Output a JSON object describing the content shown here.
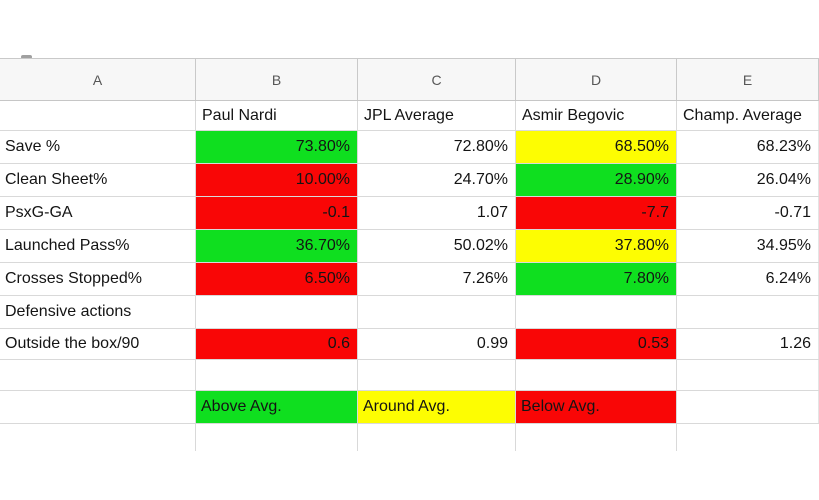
{
  "sheet": {
    "column_headers": [
      "A",
      "B",
      "C",
      "D",
      "E"
    ],
    "players_row": {
      "b": "Paul Nardi",
      "c": "JPL Average",
      "d": "Asmir Begovic",
      "e": "Champ. Average"
    },
    "stat_rows": [
      {
        "label": "Save %",
        "b": {
          "text": "73.80%",
          "bg": "green"
        },
        "c": {
          "text": "72.80%",
          "bg": "white"
        },
        "d": {
          "text": "68.50%",
          "bg": "yellow"
        },
        "e": {
          "text": "68.23%",
          "bg": "white"
        }
      },
      {
        "label": "Clean Sheet%",
        "b": {
          "text": "10.00%",
          "bg": "red"
        },
        "c": {
          "text": "24.70%",
          "bg": "white"
        },
        "d": {
          "text": "28.90%",
          "bg": "green"
        },
        "e": {
          "text": "26.04%",
          "bg": "white"
        }
      },
      {
        "label": "PsxG-GA",
        "b": {
          "text": "-0.1",
          "bg": "red"
        },
        "c": {
          "text": "1.07",
          "bg": "white"
        },
        "d": {
          "text": "-7.7",
          "bg": "red"
        },
        "e": {
          "text": "-0.71",
          "bg": "white"
        }
      },
      {
        "label": "Launched Pass%",
        "b": {
          "text": "36.70%",
          "bg": "green"
        },
        "c": {
          "text": "50.02%",
          "bg": "white"
        },
        "d": {
          "text": "37.80%",
          "bg": "yellow"
        },
        "e": {
          "text": "34.95%",
          "bg": "white"
        }
      },
      {
        "label": "Crosses Stopped%",
        "b": {
          "text": "6.50%",
          "bg": "red"
        },
        "c": {
          "text": "7.26%",
          "bg": "white"
        },
        "d": {
          "text": "7.80%",
          "bg": "green"
        },
        "e": {
          "text": "6.24%",
          "bg": "white"
        }
      },
      {
        "label": "Defensive actions",
        "b": {
          "text": "",
          "bg": "white"
        },
        "c": {
          "text": "",
          "bg": "white"
        },
        "d": {
          "text": "",
          "bg": "white"
        },
        "e": {
          "text": "",
          "bg": "white"
        }
      },
      {
        "label": "Outside the box/90",
        "b": {
          "text": "0.6",
          "bg": "red"
        },
        "c": {
          "text": "0.99",
          "bg": "white"
        },
        "d": {
          "text": "0.53",
          "bg": "red"
        },
        "e": {
          "text": "1.26",
          "bg": "white"
        }
      }
    ],
    "legend_row": {
      "b": {
        "text": "Above Avg.",
        "bg": "green"
      },
      "c": {
        "text": "Around Avg.",
        "bg": "yellow"
      },
      "d": {
        "text": "Below Avg.",
        "bg": "red"
      }
    },
    "colors": {
      "green": "#0fdf1f",
      "yellow": "#fdfd02",
      "red": "#f90606"
    }
  }
}
